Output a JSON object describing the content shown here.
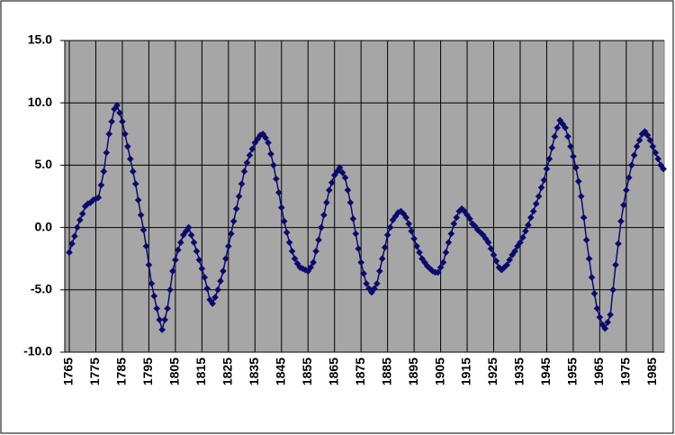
{
  "chart_data": {
    "type": "line",
    "x": [
      1765,
      1766,
      1767,
      1768,
      1769,
      1770,
      1771,
      1772,
      1773,
      1774,
      1775,
      1776,
      1777,
      1778,
      1779,
      1780,
      1781,
      1782,
      1783,
      1784,
      1785,
      1786,
      1787,
      1788,
      1789,
      1790,
      1791,
      1792,
      1793,
      1794,
      1795,
      1796,
      1797,
      1798,
      1799,
      1800,
      1801,
      1802,
      1803,
      1804,
      1805,
      1806,
      1807,
      1808,
      1809,
      1810,
      1811,
      1812,
      1813,
      1814,
      1815,
      1816,
      1817,
      1818,
      1819,
      1820,
      1821,
      1822,
      1823,
      1824,
      1825,
      1826,
      1827,
      1828,
      1829,
      1830,
      1831,
      1832,
      1833,
      1834,
      1835,
      1836,
      1837,
      1838,
      1839,
      1840,
      1841,
      1842,
      1843,
      1844,
      1845,
      1846,
      1847,
      1848,
      1849,
      1850,
      1851,
      1852,
      1853,
      1854,
      1855,
      1856,
      1857,
      1858,
      1859,
      1860,
      1861,
      1862,
      1863,
      1864,
      1865,
      1866,
      1867,
      1868,
      1869,
      1870,
      1871,
      1872,
      1873,
      1874,
      1875,
      1876,
      1877,
      1878,
      1879,
      1880,
      1881,
      1882,
      1883,
      1884,
      1885,
      1886,
      1887,
      1888,
      1889,
      1890,
      1891,
      1892,
      1893,
      1894,
      1895,
      1896,
      1897,
      1898,
      1899,
      1900,
      1901,
      1902,
      1903,
      1904,
      1905,
      1906,
      1907,
      1908,
      1909,
      1910,
      1911,
      1912,
      1913,
      1914,
      1915,
      1916,
      1917,
      1918,
      1919,
      1920,
      1921,
      1922,
      1923,
      1924,
      1925,
      1926,
      1927,
      1928,
      1929,
      1930,
      1931,
      1932,
      1933,
      1934,
      1935,
      1936,
      1937,
      1938,
      1939,
      1940,
      1941,
      1942,
      1943,
      1944,
      1945,
      1946,
      1947,
      1948,
      1949,
      1950,
      1951,
      1952,
      1953,
      1954,
      1955,
      1956,
      1957,
      1958,
      1959,
      1960,
      1961,
      1962,
      1963,
      1964,
      1965,
      1966,
      1967,
      1968,
      1969,
      1970,
      1971,
      1972,
      1973,
      1974,
      1975,
      1976,
      1977,
      1978,
      1979,
      1980,
      1981,
      1982,
      1983,
      1984,
      1985,
      1986,
      1987,
      1988,
      1989
    ],
    "values": [
      -2.0,
      -1.3,
      -0.7,
      0.0,
      0.6,
      1.1,
      1.7,
      1.9,
      2.0,
      2.2,
      2.3,
      2.4,
      3.4,
      4.5,
      6.0,
      7.5,
      8.5,
      9.5,
      9.8,
      9.2,
      8.5,
      7.5,
      6.5,
      5.5,
      4.5,
      3.5,
      2.2,
      1.0,
      -0.2,
      -1.5,
      -3.0,
      -4.5,
      -5.5,
      -6.5,
      -7.4,
      -8.2,
      -7.4,
      -6.5,
      -5.0,
      -3.5,
      -2.6,
      -1.8,
      -1.2,
      -0.6,
      -0.3,
      0.0,
      -0.6,
      -1.2,
      -1.9,
      -2.6,
      -3.3,
      -4.0,
      -4.9,
      -5.8,
      -6.1,
      -5.6,
      -5.0,
      -4.3,
      -3.5,
      -2.5,
      -1.5,
      -0.5,
      0.5,
      1.5,
      2.5,
      3.5,
      4.5,
      5.2,
      5.8,
      6.3,
      6.8,
      7.1,
      7.4,
      7.5,
      7.2,
      6.8,
      5.9,
      5.0,
      3.9,
      2.8,
      1.6,
      0.5,
      -0.4,
      -1.2,
      -1.9,
      -2.5,
      -2.9,
      -3.2,
      -3.3,
      -3.4,
      -3.5,
      -3.2,
      -2.8,
      -1.9,
      -1.0,
      0.0,
      1.0,
      2.0,
      3.0,
      3.6,
      4.2,
      4.5,
      4.8,
      4.4,
      4.0,
      3.0,
      2.0,
      0.7,
      -0.5,
      -1.7,
      -2.8,
      -3.7,
      -4.5,
      -4.9,
      -5.2,
      -4.9,
      -4.5,
      -3.5,
      -2.5,
      -1.6,
      -0.6,
      0.0,
      0.6,
      0.9,
      1.2,
      1.3,
      1.1,
      0.8,
      0.3,
      -0.3,
      -0.9,
      -1.5,
      -2.0,
      -2.5,
      -2.8,
      -3.1,
      -3.3,
      -3.5,
      -3.6,
      -3.6,
      -3.2,
      -2.8,
      -2.0,
      -1.2,
      -0.5,
      0.3,
      0.8,
      1.3,
      1.5,
      1.3,
      1.0,
      0.7,
      0.3,
      0.1,
      -0.2,
      -0.4,
      -0.6,
      -0.9,
      -1.2,
      -1.7,
      -2.2,
      -2.7,
      -3.2,
      -3.4,
      -3.2,
      -3.0,
      -2.6,
      -2.2,
      -1.9,
      -1.5,
      -1.2,
      -0.8,
      -0.3,
      0.2,
      0.8,
      1.3,
      1.9,
      2.5,
      3.2,
      3.8,
      4.7,
      5.5,
      6.4,
      7.3,
      8.0,
      8.6,
      8.3,
      8.0,
      7.3,
      6.5,
      5.7,
      4.8,
      3.7,
      2.5,
      0.8,
      -1.0,
      -2.5,
      -4.0,
      -5.3,
      -6.5,
      -7.2,
      -7.8,
      -8.1,
      -7.6,
      -7.0,
      -5.0,
      -3.0,
      -1.3,
      0.5,
      1.8,
      3.0,
      4.0,
      5.0,
      5.8,
      6.5,
      7.0,
      7.5,
      7.7,
      7.4,
      7.0,
      6.5,
      6.0,
      5.5,
      5.0,
      4.7
    ],
    "color": "#0a0a6e",
    "xlim": [
      1763.3,
      1989.3
    ],
    "xticks": [
      1765,
      1775,
      1785,
      1795,
      1805,
      1815,
      1825,
      1835,
      1845,
      1855,
      1865,
      1875,
      1885,
      1895,
      1905,
      1915,
      1925,
      1935,
      1945,
      1955,
      1965,
      1975,
      1985
    ],
    "ylim": [
      -10,
      15
    ],
    "yticks": [
      {
        "value": -10,
        "label": "-10.0"
      },
      {
        "value": -5,
        "label": "-5.0"
      },
      {
        "value": 0,
        "label": "0.0"
      },
      {
        "value": 5,
        "label": "5.0"
      },
      {
        "value": 10,
        "label": "10.0"
      },
      {
        "value": 15,
        "label": "15.0"
      }
    ],
    "grid": true
  }
}
